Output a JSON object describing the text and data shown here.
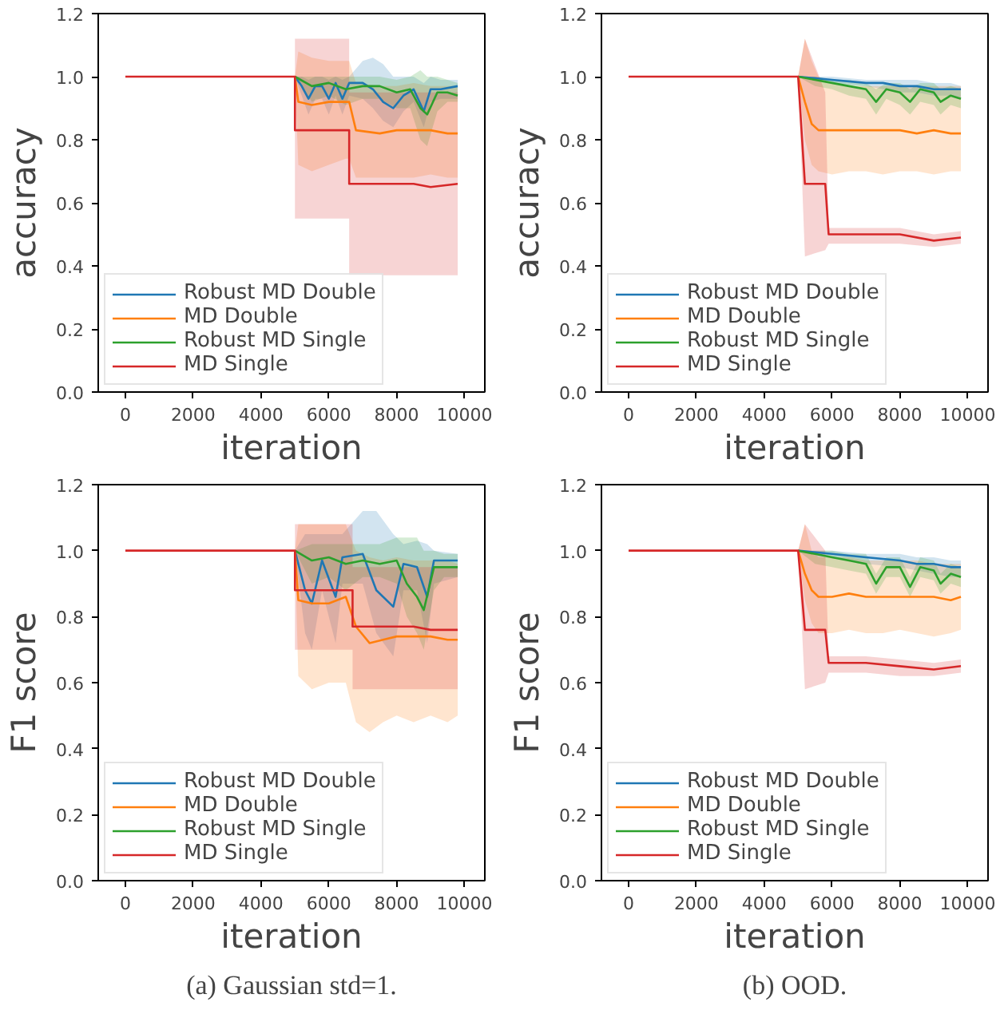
{
  "chart_data": [
    {
      "type": "line",
      "ylabel": "accuracy",
      "xlabel": "iteration",
      "xlim": [
        -800,
        10600
      ],
      "ylim": [
        0,
        1.2
      ],
      "xticks": [
        0,
        2000,
        4000,
        6000,
        8000,
        10000
      ],
      "yticks": [
        {
          "value": 0,
          "label": "0.0"
        },
        {
          "value": 0.2,
          "label": "0.2"
        },
        {
          "value": 0.4,
          "label": "0.4"
        },
        {
          "value": 0.6,
          "label": "0.6"
        },
        {
          "value": 0.8,
          "label": "0.8"
        },
        {
          "value": 1,
          "label": "1.0"
        },
        {
          "value": 1.2,
          "label": "1.2"
        }
      ],
      "grid": false,
      "legend": "bottom left",
      "series": [
        {
          "name": "Robust MD Double",
          "color": "#1f77b4",
          "x": [
            5000,
            5200,
            5400,
            5600,
            5800,
            6000,
            6200,
            6400,
            6600,
            7000,
            7300,
            7600,
            7900,
            8200,
            8500,
            8800,
            9000,
            9300,
            9800
          ],
          "values": [
            1.0,
            0.97,
            0.93,
            0.97,
            0.97,
            0.93,
            0.98,
            0.93,
            0.98,
            0.98,
            0.96,
            0.92,
            0.9,
            0.94,
            0.96,
            0.89,
            0.96,
            0.96,
            0.97
          ],
          "lower": [
            1.0,
            0.94,
            0.88,
            0.93,
            0.93,
            0.88,
            0.94,
            0.88,
            0.94,
            0.93,
            0.9,
            0.86,
            0.84,
            0.89,
            0.92,
            0.84,
            0.92,
            0.93,
            0.93
          ],
          "upper": [
            1.0,
            1.0,
            0.99,
            1.0,
            1.0,
            0.99,
            1.0,
            0.99,
            1.0,
            1.05,
            1.06,
            1.04,
            1.0,
            1.0,
            1.0,
            0.98,
            1.0,
            0.99,
            0.99
          ]
        },
        {
          "name": "MD Double",
          "color": "#ff7f0e",
          "x": [
            5000,
            5100,
            5500,
            6000,
            6500,
            6600,
            6800,
            7500,
            8000,
            8500,
            9000,
            9500,
            9800
          ],
          "values": [
            1.0,
            0.92,
            0.91,
            0.92,
            0.92,
            0.92,
            0.83,
            0.82,
            0.83,
            0.83,
            0.83,
            0.82,
            0.82
          ],
          "lower": [
            1.0,
            0.72,
            0.7,
            0.72,
            0.74,
            0.74,
            0.68,
            0.68,
            0.68,
            0.68,
            0.69,
            0.68,
            0.68
          ],
          "upper": [
            1.0,
            1.08,
            1.06,
            1.05,
            1.05,
            1.05,
            0.98,
            0.97,
            0.97,
            0.98,
            0.97,
            0.97,
            0.97
          ]
        },
        {
          "name": "Robust MD Single",
          "color": "#2ca02c",
          "x": [
            5000,
            5500,
            6000,
            6500,
            7000,
            7500,
            8000,
            8400,
            8700,
            8900,
            9200,
            9500,
            9800
          ],
          "values": [
            1.0,
            0.97,
            0.98,
            0.96,
            0.97,
            0.97,
            0.95,
            0.96,
            0.9,
            0.88,
            0.95,
            0.95,
            0.94
          ],
          "lower": [
            1.0,
            0.92,
            0.94,
            0.91,
            0.93,
            0.93,
            0.9,
            0.9,
            0.8,
            0.78,
            0.89,
            0.92,
            0.92
          ],
          "upper": [
            1.0,
            1.0,
            1.0,
            1.0,
            1.0,
            1.0,
            0.99,
            1.0,
            1.02,
            1.0,
            1.0,
            0.99,
            0.98
          ]
        },
        {
          "name": "MD Single",
          "color": "#d62728",
          "x": [
            0,
            5000,
            5000,
            6600,
            6600,
            7500,
            8500,
            9000,
            9800
          ],
          "values": [
            1.0,
            1.0,
            0.83,
            0.83,
            0.66,
            0.66,
            0.66,
            0.65,
            0.66
          ],
          "lower": [
            1.0,
            1.0,
            0.55,
            0.55,
            0.37,
            0.37,
            0.37,
            0.37,
            0.37
          ],
          "upper": [
            1.0,
            1.0,
            1.12,
            1.12,
            0.95,
            0.95,
            0.95,
            0.95,
            0.95
          ]
        }
      ]
    },
    {
      "type": "line",
      "ylabel": "accuracy",
      "xlabel": "iteration",
      "xlim": [
        -800,
        10600
      ],
      "ylim": [
        0,
        1.2
      ],
      "xticks": [
        0,
        2000,
        4000,
        6000,
        8000,
        10000
      ],
      "yticks": [
        {
          "value": 0,
          "label": "0.0"
        },
        {
          "value": 0.2,
          "label": "0.2"
        },
        {
          "value": 0.4,
          "label": "0.4"
        },
        {
          "value": 0.6,
          "label": "0.6"
        },
        {
          "value": 0.8,
          "label": "0.8"
        },
        {
          "value": 1,
          "label": "1.0"
        },
        {
          "value": 1.2,
          "label": "1.2"
        }
      ],
      "grid": false,
      "legend": "bottom left",
      "series": [
        {
          "name": "Robust MD Double",
          "color": "#1f77b4",
          "x": [
            5000,
            6000,
            7000,
            7500,
            8000,
            8500,
            9000,
            9500,
            9800
          ],
          "values": [
            1.0,
            0.99,
            0.98,
            0.98,
            0.97,
            0.97,
            0.96,
            0.96,
            0.96
          ],
          "lower": [
            1.0,
            0.98,
            0.97,
            0.96,
            0.95,
            0.95,
            0.94,
            0.94,
            0.93
          ],
          "upper": [
            1.0,
            1.0,
            0.99,
            0.99,
            0.99,
            0.99,
            0.98,
            0.98,
            0.97
          ]
        },
        {
          "name": "MD Double",
          "color": "#ff7f0e",
          "x": [
            5000,
            5200,
            5400,
            5600,
            6000,
            6500,
            7000,
            7500,
            8000,
            8500,
            9000,
            9500,
            9800
          ],
          "values": [
            1.0,
            0.92,
            0.85,
            0.83,
            0.83,
            0.83,
            0.83,
            0.83,
            0.83,
            0.82,
            0.83,
            0.82,
            0.82
          ],
          "lower": [
            1.0,
            0.8,
            0.72,
            0.7,
            0.69,
            0.7,
            0.7,
            0.69,
            0.7,
            0.7,
            0.69,
            0.7,
            0.7
          ],
          "upper": [
            1.0,
            1.12,
            1.05,
            1.0,
            0.98,
            0.97,
            0.97,
            0.97,
            0.97,
            0.97,
            0.97,
            0.97,
            0.97
          ]
        },
        {
          "name": "Robust MD Single",
          "color": "#2ca02c",
          "x": [
            5000,
            5500,
            6000,
            6500,
            7000,
            7300,
            7600,
            8000,
            8300,
            8600,
            9000,
            9200,
            9500,
            9800
          ],
          "values": [
            1.0,
            0.99,
            0.98,
            0.97,
            0.96,
            0.92,
            0.96,
            0.95,
            0.92,
            0.96,
            0.95,
            0.92,
            0.94,
            0.93
          ],
          "lower": [
            1.0,
            0.97,
            0.96,
            0.94,
            0.93,
            0.88,
            0.93,
            0.91,
            0.88,
            0.92,
            0.91,
            0.88,
            0.91,
            0.9
          ],
          "upper": [
            1.0,
            1.0,
            0.99,
            0.99,
            0.98,
            0.96,
            0.98,
            0.98,
            0.96,
            0.98,
            0.98,
            0.96,
            0.97,
            0.96
          ]
        },
        {
          "name": "MD Single",
          "color": "#d62728",
          "x": [
            0,
            5000,
            5200,
            5800,
            5900,
            7000,
            8000,
            9000,
            9800
          ],
          "values": [
            1.0,
            1.0,
            0.66,
            0.66,
            0.5,
            0.5,
            0.5,
            0.48,
            0.49
          ],
          "lower": [
            1.0,
            1.0,
            0.43,
            0.45,
            0.47,
            0.47,
            0.47,
            0.46,
            0.47
          ],
          "upper": [
            1.0,
            1.0,
            1.12,
            0.95,
            0.52,
            0.52,
            0.52,
            0.5,
            0.51
          ]
        }
      ]
    },
    {
      "type": "line",
      "ylabel": "F1 score",
      "xlabel": "iteration",
      "xlim": [
        -800,
        10600
      ],
      "ylim": [
        0,
        1.2
      ],
      "xticks": [
        0,
        2000,
        4000,
        6000,
        8000,
        10000
      ],
      "yticks": [
        {
          "value": 0,
          "label": "0.0"
        },
        {
          "value": 0.2,
          "label": "0.2"
        },
        {
          "value": 0.4,
          "label": "0.4"
        },
        {
          "value": 0.6,
          "label": "0.6"
        },
        {
          "value": 0.8,
          "label": "0.8"
        },
        {
          "value": 1,
          "label": "1.0"
        },
        {
          "value": 1.2,
          "label": "1.2"
        }
      ],
      "grid": false,
      "legend": "bottom left",
      "annotations": [
        "(a) Gaussian std=1."
      ],
      "series": [
        {
          "name": "Robust MD Double",
          "color": "#1f77b4",
          "x": [
            5000,
            5300,
            5500,
            5800,
            6200,
            6400,
            7000,
            7400,
            7900,
            8200,
            8600,
            8900,
            9100,
            9800
          ],
          "values": [
            1.0,
            0.88,
            0.84,
            0.97,
            0.86,
            0.98,
            0.99,
            0.88,
            0.83,
            0.96,
            0.95,
            0.86,
            0.97,
            0.97
          ],
          "lower": [
            1.0,
            0.75,
            0.7,
            0.88,
            0.72,
            0.9,
            0.9,
            0.75,
            0.68,
            0.88,
            0.88,
            0.72,
            0.9,
            0.92
          ],
          "upper": [
            1.0,
            1.05,
            1.05,
            1.05,
            1.05,
            1.05,
            1.12,
            1.12,
            1.05,
            1.02,
            1.03,
            1.02,
            1.0,
            0.99
          ]
        },
        {
          "name": "MD Double",
          "color": "#ff7f0e",
          "x": [
            5000,
            5100,
            5500,
            6000,
            6500,
            6800,
            7200,
            7600,
            8000,
            8500,
            9000,
            9500,
            9800
          ],
          "values": [
            1.0,
            0.85,
            0.84,
            0.84,
            0.86,
            0.77,
            0.72,
            0.73,
            0.74,
            0.74,
            0.74,
            0.73,
            0.73
          ],
          "lower": [
            1.0,
            0.62,
            0.58,
            0.6,
            0.6,
            0.48,
            0.45,
            0.48,
            0.5,
            0.48,
            0.5,
            0.48,
            0.5
          ],
          "upper": [
            1.0,
            1.08,
            1.08,
            1.08,
            1.08,
            1.0,
            0.98,
            0.97,
            0.98,
            0.97,
            0.97,
            0.97,
            0.96
          ]
        },
        {
          "name": "Robust MD Single",
          "color": "#2ca02c",
          "x": [
            5000,
            5500,
            6000,
            6500,
            7000,
            7500,
            8000,
            8300,
            8600,
            8800,
            9100,
            9400,
            9800
          ],
          "values": [
            1.0,
            0.97,
            0.98,
            0.96,
            0.97,
            0.96,
            0.97,
            0.9,
            0.86,
            0.82,
            0.95,
            0.95,
            0.95
          ],
          "lower": [
            1.0,
            0.9,
            0.92,
            0.88,
            0.92,
            0.92,
            0.9,
            0.8,
            0.75,
            0.7,
            0.88,
            0.92,
            0.92
          ],
          "upper": [
            1.0,
            1.02,
            1.02,
            1.02,
            1.02,
            1.02,
            1.04,
            1.04,
            1.04,
            1.0,
            1.0,
            0.99,
            0.99
          ]
        },
        {
          "name": "MD Single",
          "color": "#d62728",
          "x": [
            0,
            5000,
            5000,
            6700,
            6700,
            7500,
            8500,
            9000,
            9800
          ],
          "values": [
            1.0,
            1.0,
            0.88,
            0.88,
            0.77,
            0.77,
            0.77,
            0.76,
            0.76
          ],
          "lower": [
            1.0,
            1.0,
            0.7,
            0.7,
            0.58,
            0.58,
            0.58,
            0.58,
            0.58
          ],
          "upper": [
            1.0,
            1.0,
            1.08,
            1.08,
            0.95,
            0.95,
            0.95,
            0.95,
            0.95
          ]
        }
      ]
    },
    {
      "type": "line",
      "ylabel": "F1 score",
      "xlabel": "iteration",
      "xlim": [
        -800,
        10600
      ],
      "ylim": [
        0,
        1.2
      ],
      "xticks": [
        0,
        2000,
        4000,
        6000,
        8000,
        10000
      ],
      "yticks": [
        {
          "value": 0,
          "label": "0.0"
        },
        {
          "value": 0.2,
          "label": "0.2"
        },
        {
          "value": 0.4,
          "label": "0.4"
        },
        {
          "value": 0.6,
          "label": "0.6"
        },
        {
          "value": 0.8,
          "label": "0.8"
        },
        {
          "value": 1,
          "label": "1.0"
        },
        {
          "value": 1.2,
          "label": "1.2"
        }
      ],
      "grid": false,
      "legend": "bottom left",
      "annotations": [
        "(b) OOD."
      ],
      "series": [
        {
          "name": "Robust MD Double",
          "color": "#1f77b4",
          "x": [
            5000,
            6000,
            7000,
            8000,
            8500,
            9000,
            9500,
            9800
          ],
          "values": [
            1.0,
            0.99,
            0.98,
            0.97,
            0.96,
            0.96,
            0.95,
            0.95
          ],
          "lower": [
            1.0,
            0.98,
            0.96,
            0.95,
            0.94,
            0.93,
            0.92,
            0.92
          ],
          "upper": [
            1.0,
            1.0,
            0.99,
            0.99,
            0.98,
            0.98,
            0.97,
            0.97
          ]
        },
        {
          "name": "MD Double",
          "color": "#ff7f0e",
          "x": [
            5000,
            5200,
            5400,
            5600,
            6000,
            6500,
            7000,
            7500,
            8000,
            8500,
            9000,
            9500,
            9800
          ],
          "values": [
            1.0,
            0.93,
            0.88,
            0.86,
            0.86,
            0.87,
            0.86,
            0.86,
            0.86,
            0.86,
            0.86,
            0.85,
            0.86
          ],
          "lower": [
            1.0,
            0.85,
            0.78,
            0.75,
            0.75,
            0.76,
            0.75,
            0.75,
            0.76,
            0.75,
            0.74,
            0.75,
            0.76
          ],
          "upper": [
            1.0,
            1.08,
            1.0,
            0.98,
            0.98,
            0.98,
            0.97,
            0.97,
            0.97,
            0.97,
            0.96,
            0.96,
            0.96
          ]
        },
        {
          "name": "Robust MD Single",
          "color": "#2ca02c",
          "x": [
            5000,
            5500,
            6000,
            6500,
            7000,
            7300,
            7600,
            8000,
            8300,
            8600,
            9000,
            9200,
            9500,
            9800
          ],
          "values": [
            1.0,
            0.99,
            0.98,
            0.97,
            0.96,
            0.9,
            0.95,
            0.95,
            0.89,
            0.95,
            0.94,
            0.9,
            0.93,
            0.92
          ],
          "lower": [
            1.0,
            0.96,
            0.95,
            0.94,
            0.93,
            0.87,
            0.92,
            0.92,
            0.86,
            0.92,
            0.91,
            0.87,
            0.9,
            0.89
          ],
          "upper": [
            1.0,
            1.0,
            1.0,
            0.99,
            0.99,
            0.93,
            0.98,
            0.98,
            0.92,
            0.98,
            0.97,
            0.93,
            0.96,
            0.95
          ]
        },
        {
          "name": "MD Single",
          "color": "#d62728",
          "x": [
            0,
            5000,
            5200,
            5800,
            5900,
            7000,
            8000,
            9000,
            9800
          ],
          "values": [
            1.0,
            1.0,
            0.76,
            0.76,
            0.66,
            0.66,
            0.65,
            0.64,
            0.65
          ],
          "lower": [
            1.0,
            1.0,
            0.58,
            0.6,
            0.63,
            0.63,
            0.62,
            0.62,
            0.63
          ],
          "upper": [
            1.0,
            1.0,
            1.08,
            1.0,
            0.68,
            0.68,
            0.67,
            0.66,
            0.67
          ]
        }
      ]
    }
  ]
}
